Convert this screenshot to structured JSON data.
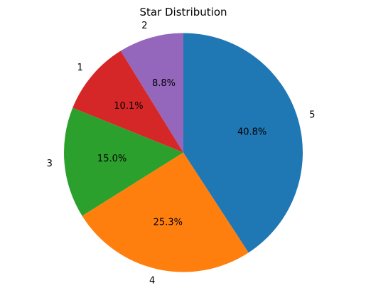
{
  "chart_data": {
    "type": "pie",
    "title": "Star Distribution",
    "categories": [
      "2",
      "1",
      "3",
      "4",
      "5"
    ],
    "values": [
      8.8,
      10.1,
      15.0,
      25.3,
      40.8
    ],
    "percent_labels": [
      "8.8%",
      "10.1%",
      "15.0%",
      "25.3%",
      "40.8%"
    ],
    "colors": [
      "#9467bd",
      "#d62728",
      "#2ca02c",
      "#ff7f0e",
      "#1f77b4"
    ],
    "start_angle_deg": 90,
    "direction": "counterclockwise"
  }
}
